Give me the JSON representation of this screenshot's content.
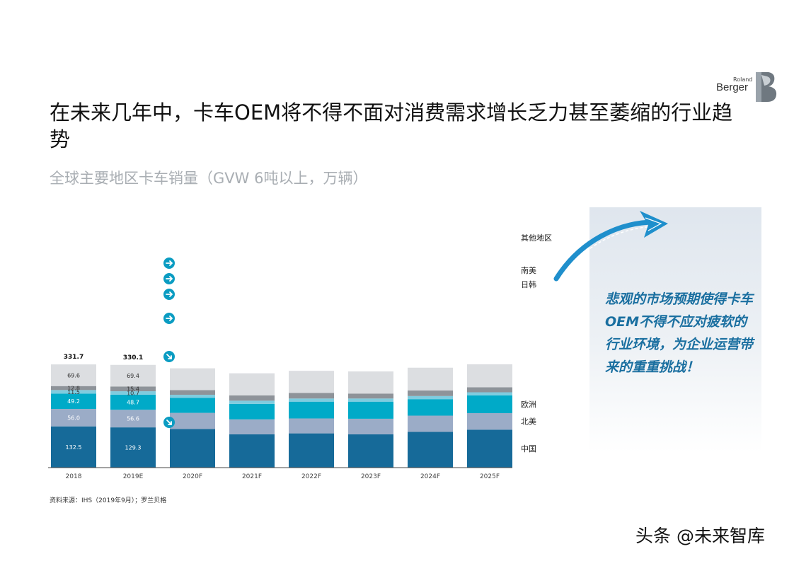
{
  "logo": {
    "line1": "Roland",
    "line2": "Berger"
  },
  "header": {
    "title": "在未来几年中，卡车OEM将不得不面对消费需求增长乏力甚至萎缩的行业趋势"
  },
  "chart_data": {
    "type": "bar",
    "stacked": true,
    "title": "全球主要地区卡车销量（GVW 6吨以上，万辆）",
    "categories": [
      "2018",
      "2019E",
      "2020F",
      "2021F",
      "2022F",
      "2023F",
      "2024F",
      "2025F"
    ],
    "series": [
      {
        "name": "中国",
        "color": "#166a99",
        "values": [
          132.5,
          129.3,
          124.0,
          107.0,
          110.0,
          107.0,
          115.0,
          122.0
        ]
      },
      {
        "name": "北美",
        "color": "#9bacc7",
        "values": [
          56.0,
          56.6,
          52.0,
          48.0,
          48.0,
          50.0,
          52.0,
          53.0
        ]
      },
      {
        "name": "欧洲",
        "color": "#00aac8",
        "values": [
          49.2,
          48.7,
          48.0,
          50.0,
          54.0,
          55.0,
          53.0,
          57.0
        ]
      },
      {
        "name": "日韩",
        "color": "#7fccdf",
        "values": [
          11.5,
          10.7,
          10.0,
          10.0,
          10.0,
          10.0,
          10.0,
          10.0
        ]
      },
      {
        "name": "南美",
        "color": "#8e9399",
        "values": [
          12.8,
          15.4,
          15.0,
          17.0,
          18.0,
          16.0,
          18.0,
          16.0
        ]
      },
      {
        "name": "其他地区",
        "color": "#dcdee1",
        "values": [
          69.6,
          69.4,
          70.0,
          71.0,
          71.0,
          71.0,
          73.0,
          74.0
        ]
      }
    ],
    "data_labels": [
      [
        "132.5",
        "56.0",
        "49.2",
        "11.5",
        "12.8",
        "69.6"
      ],
      [
        "129.3",
        "56.6",
        "48.7",
        "10.7",
        "15.4",
        "69.4"
      ]
    ],
    "totals": [
      "331.7",
      "330.1"
    ],
    "trend_icons": [
      {
        "series": "其他地区",
        "direction": "right"
      },
      {
        "series": "南美",
        "direction": "right"
      },
      {
        "series": "日韩",
        "direction": "right"
      },
      {
        "series": "欧洲",
        "direction": "right"
      },
      {
        "series": "北美",
        "direction": "down-right"
      },
      {
        "series": "中国",
        "direction": "down-right"
      }
    ],
    "legend_position": "right",
    "grid": false
  },
  "source": "资料来源：IHS（2019年9月）；罗兰贝格",
  "callout": {
    "text": "悲观的市场预期使得卡车OEM不得不应对疲软的行业环境，为企业运营带来的重重挑战！"
  },
  "watermark": "头条 @未来智库"
}
